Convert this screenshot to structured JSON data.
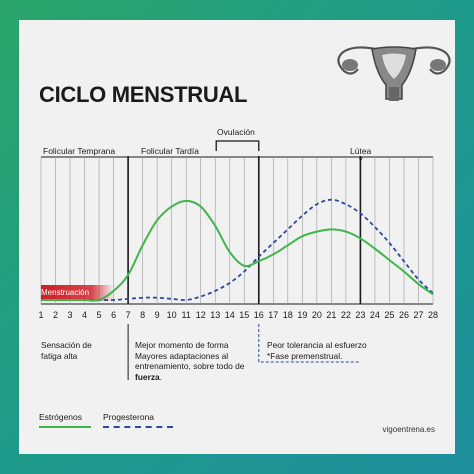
{
  "title": "CICLO MENSTRUAL",
  "phases": {
    "folicular_temprana": "Folicular Temprana",
    "folicular_tardia": "Folicular Tardía",
    "ovulacion": "Ovulación",
    "lutea": "Lútea"
  },
  "asterisk": "*",
  "menstruacion_label": "Menstruación",
  "days": [
    "1",
    "2",
    "3",
    "4",
    "5",
    "6",
    "7",
    "8",
    "9",
    "10",
    "11",
    "12",
    "13",
    "14",
    "15",
    "16",
    "17",
    "18",
    "19",
    "20",
    "21",
    "22",
    "23",
    "24",
    "25",
    "26",
    "27",
    "28"
  ],
  "notes": {
    "fatiga": [
      "Sensación de",
      "fatiga alta"
    ],
    "mejor": [
      "Mejor momento de forma",
      "Mayores adaptaciones al",
      "entrenamiento, sobre todo de"
    ],
    "mejor_bold": "fuerza",
    "mejor_tail": ".",
    "peor": [
      "Peor tolerancia al esfuerzo",
      "*Fase premenstrual."
    ]
  },
  "legend": {
    "estrogenos": "Estrógenos",
    "progesterona": "Progesterona"
  },
  "website": "vigoentrena.es",
  "colors": {
    "estrogenos": "#3db54a",
    "progesterona": "#2e4a9e",
    "menstruacion": "#d01c25",
    "grid": "#9a9a9a",
    "text": "#1a1a1a"
  },
  "chart_data": {
    "type": "line",
    "x": [
      1,
      2,
      3,
      4,
      5,
      6,
      7,
      8,
      9,
      10,
      11,
      12,
      13,
      14,
      15,
      16,
      17,
      18,
      19,
      20,
      21,
      22,
      23,
      24,
      25,
      26,
      27,
      28
    ],
    "series": [
      {
        "name": "Estrógenos",
        "values": [
          0,
          0,
          0,
          0,
          0,
          8,
          22,
          48,
          70,
          82,
          87,
          82,
          65,
          42,
          30,
          34,
          40,
          48,
          56,
          60,
          62,
          60,
          54,
          45,
          35,
          25,
          14,
          5
        ]
      },
      {
        "name": "Progesterona",
        "values": [
          0,
          0,
          0,
          0,
          0,
          0,
          1,
          2,
          2,
          1,
          0,
          3,
          8,
          15,
          25,
          38,
          50,
          62,
          74,
          84,
          88,
          84,
          76,
          64,
          50,
          34,
          18,
          6
        ]
      }
    ],
    "ylim": [
      0,
      100
    ],
    "grid": true,
    "legend_position": "bottom-left"
  }
}
